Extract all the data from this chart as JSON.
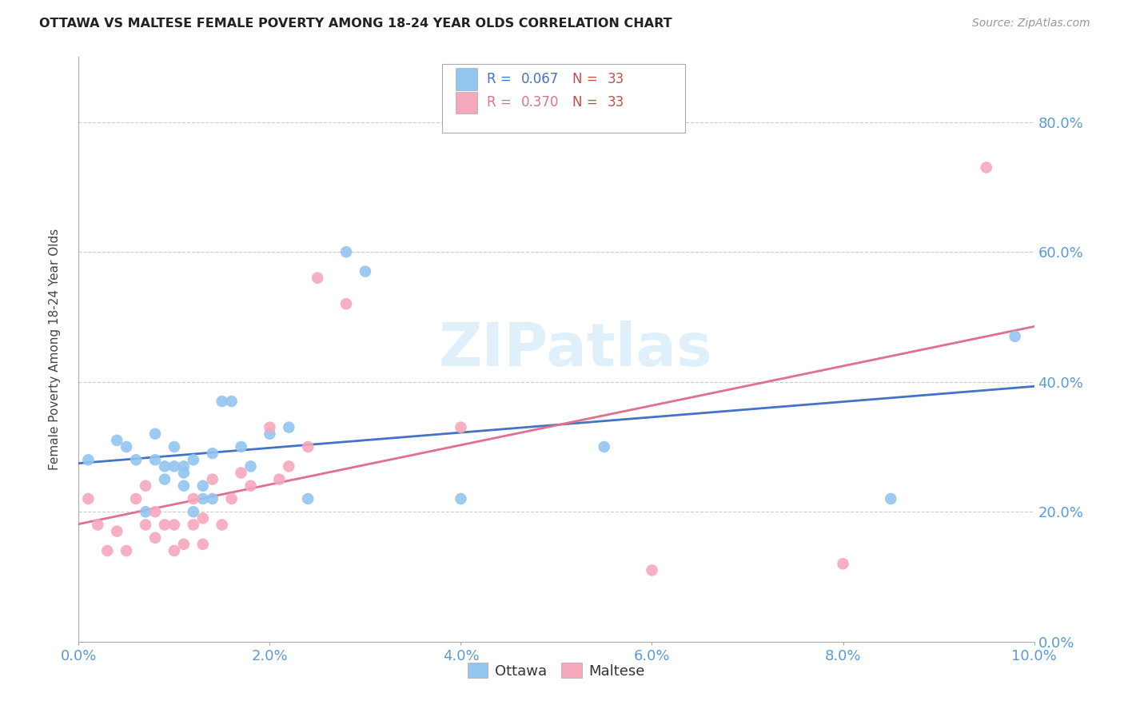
{
  "title": "OTTAWA VS MALTESE FEMALE POVERTY AMONG 18-24 YEAR OLDS CORRELATION CHART",
  "source": "Source: ZipAtlas.com",
  "ylabel": "Female Poverty Among 18-24 Year Olds",
  "xlim": [
    0.0,
    0.1
  ],
  "ylim": [
    0.0,
    0.9
  ],
  "xticks": [
    0.0,
    0.02,
    0.04,
    0.06,
    0.08,
    0.1
  ],
  "yticks": [
    0.0,
    0.2,
    0.4,
    0.6,
    0.8
  ],
  "xtick_labels": [
    "0.0%",
    "2.0%",
    "4.0%",
    "6.0%",
    "8.0%",
    "10.0%"
  ],
  "ytick_labels": [
    "0.0%",
    "20.0%",
    "40.0%",
    "60.0%",
    "80.0%"
  ],
  "ottawa_color": "#92C5F0",
  "maltese_color": "#F5A8BC",
  "ottawa_line_color": "#4472C4",
  "maltese_line_color": "#E07090",
  "ottawa_R": 0.067,
  "ottawa_N": 33,
  "maltese_R": 0.37,
  "maltese_N": 33,
  "legend_blue": "#4472C4",
  "legend_red": "#C0504D",
  "watermark": "ZIPatlas",
  "ottawa_x": [
    0.001,
    0.004,
    0.005,
    0.006,
    0.007,
    0.008,
    0.008,
    0.009,
    0.009,
    0.01,
    0.01,
    0.011,
    0.011,
    0.011,
    0.012,
    0.012,
    0.013,
    0.013,
    0.014,
    0.014,
    0.015,
    0.016,
    0.017,
    0.018,
    0.02,
    0.022,
    0.024,
    0.028,
    0.03,
    0.04,
    0.055,
    0.085,
    0.098
  ],
  "ottawa_y": [
    0.28,
    0.31,
    0.3,
    0.28,
    0.2,
    0.32,
    0.28,
    0.25,
    0.27,
    0.3,
    0.27,
    0.27,
    0.26,
    0.24,
    0.28,
    0.2,
    0.22,
    0.24,
    0.29,
    0.22,
    0.37,
    0.37,
    0.3,
    0.27,
    0.32,
    0.33,
    0.22,
    0.6,
    0.57,
    0.22,
    0.3,
    0.22,
    0.47
  ],
  "maltese_x": [
    0.001,
    0.002,
    0.003,
    0.004,
    0.005,
    0.006,
    0.007,
    0.007,
    0.008,
    0.008,
    0.009,
    0.01,
    0.01,
    0.011,
    0.012,
    0.012,
    0.013,
    0.013,
    0.014,
    0.015,
    0.016,
    0.017,
    0.018,
    0.02,
    0.021,
    0.022,
    0.024,
    0.025,
    0.028,
    0.04,
    0.06,
    0.08,
    0.095
  ],
  "maltese_y": [
    0.22,
    0.18,
    0.14,
    0.17,
    0.14,
    0.22,
    0.24,
    0.18,
    0.16,
    0.2,
    0.18,
    0.18,
    0.14,
    0.15,
    0.18,
    0.22,
    0.15,
    0.19,
    0.25,
    0.18,
    0.22,
    0.26,
    0.24,
    0.33,
    0.25,
    0.27,
    0.3,
    0.56,
    0.52,
    0.33,
    0.11,
    0.12,
    0.73
  ],
  "background_color": "#FFFFFF",
  "grid_color": "#CCCCCC",
  "tick_color": "#5B9BD5"
}
